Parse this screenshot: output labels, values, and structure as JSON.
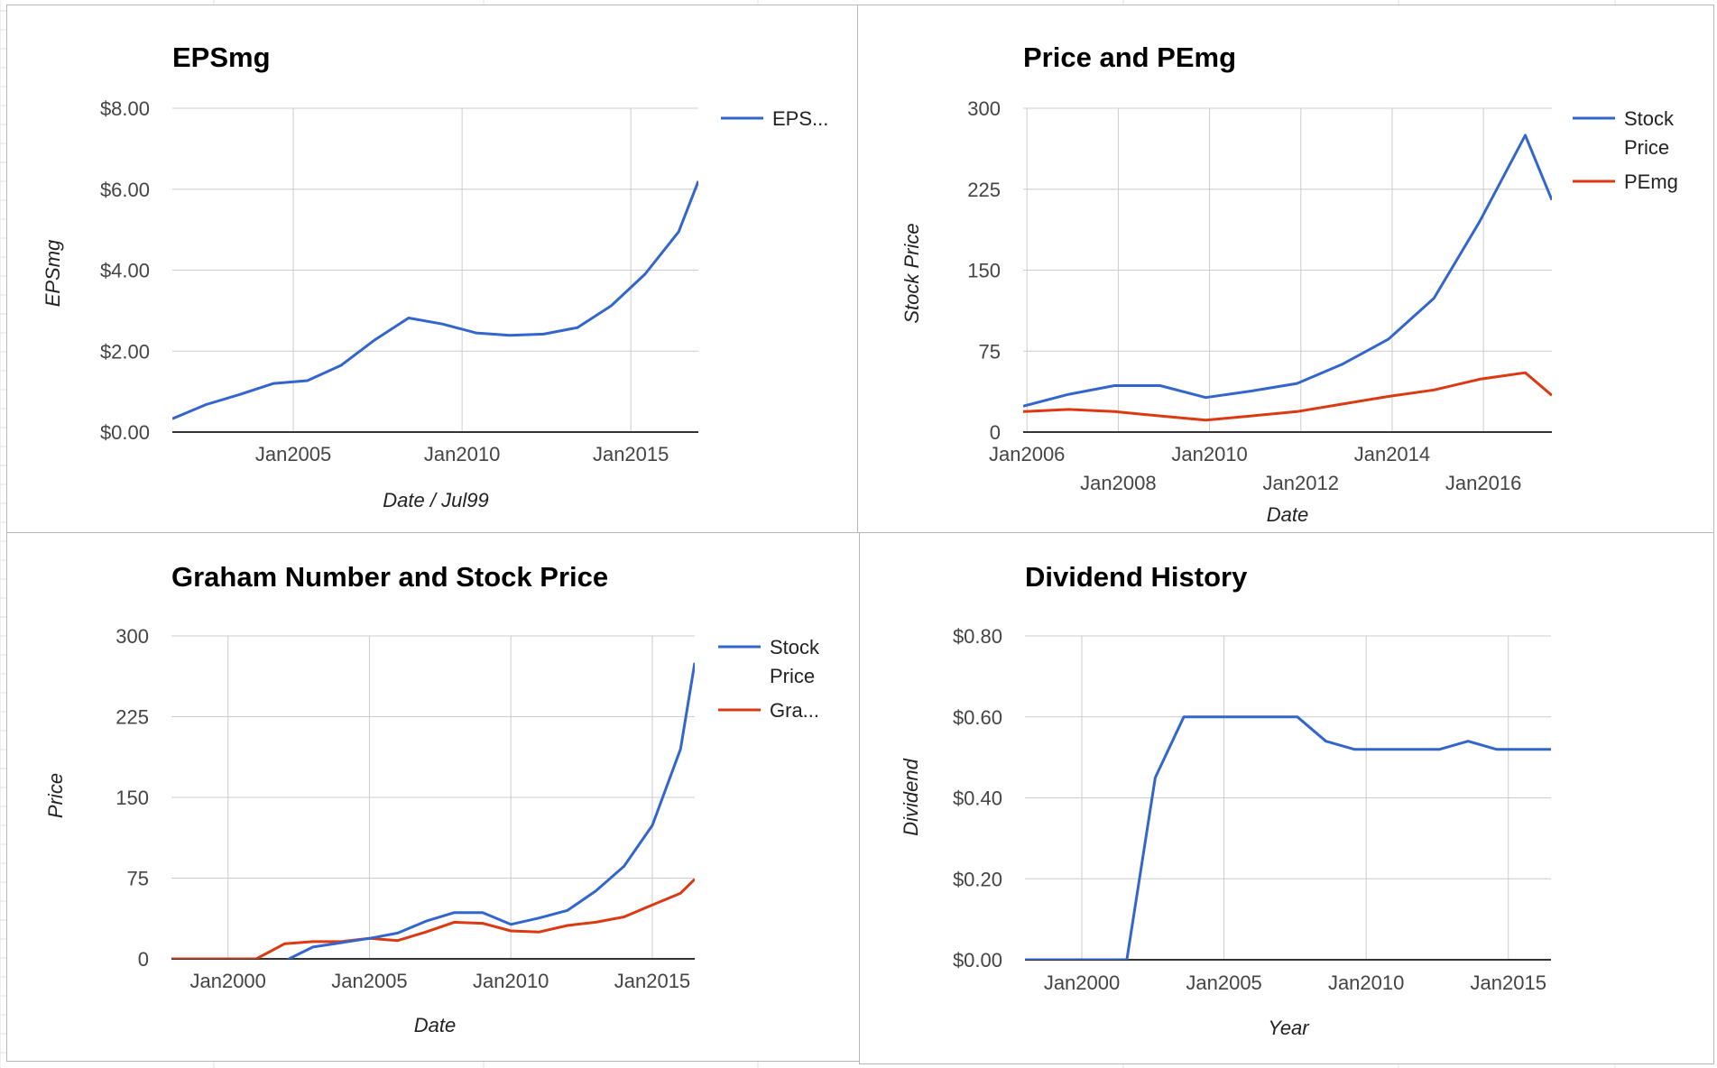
{
  "colors": {
    "series_blue": "#3366cc",
    "series_red": "#dc3912",
    "grid": "#cccccc",
    "baseline": "#333333",
    "panel_border": "#b7b7b7",
    "sheet_grid": "#e2e2e2"
  },
  "chart_data": [
    {
      "type": "line",
      "title": "EPSmg",
      "xlabel": "Date / Jul99",
      "ylabel": "EPSmg",
      "x_ticks": [
        "Jan2005",
        "Jan2010",
        "Jan2015"
      ],
      "y_ticks": [
        "$0.00",
        "$2.00",
        "$4.00",
        "$6.00",
        "$8.00"
      ],
      "ylim": [
        0,
        8
      ],
      "xlim": [
        "2001-06",
        "2017-01"
      ],
      "grid": true,
      "legend_position": "right",
      "series": [
        {
          "name": "EPS...",
          "color": "#3366cc",
          "points": [
            [
              "2001-06",
              0.33
            ],
            [
              "2002-06",
              0.68
            ],
            [
              "2003-06",
              0.93
            ],
            [
              "2004-06",
              1.2
            ],
            [
              "2005-06",
              1.27
            ],
            [
              "2006-06",
              1.65
            ],
            [
              "2007-06",
              2.28
            ],
            [
              "2008-06",
              2.82
            ],
            [
              "2009-06",
              2.67
            ],
            [
              "2010-06",
              2.45
            ],
            [
              "2011-06",
              2.39
            ],
            [
              "2012-06",
              2.42
            ],
            [
              "2013-06",
              2.58
            ],
            [
              "2014-06",
              3.12
            ],
            [
              "2015-06",
              3.9
            ],
            [
              "2016-06",
              4.95
            ],
            [
              "2017-01",
              6.2
            ]
          ]
        }
      ]
    },
    {
      "type": "line",
      "title": "Price and PEmg",
      "xlabel": "Date",
      "ylabel": "Stock Price",
      "x_ticks_row1": [
        "Jan2006",
        "Jan2010",
        "Jan2014"
      ],
      "x_ticks_row2": [
        "Jan2008",
        "Jan2012",
        "Jan2016"
      ],
      "y_ticks": [
        "0",
        "75",
        "150",
        "225",
        "300"
      ],
      "ylim": [
        0,
        300
      ],
      "xlim": [
        "2005-12",
        "2017-07"
      ],
      "grid": true,
      "legend_position": "right",
      "series": [
        {
          "name": "Stock Price",
          "color": "#3366cc",
          "points": [
            [
              "2005-12",
              24
            ],
            [
              "2006-12",
              35
            ],
            [
              "2007-12",
              43
            ],
            [
              "2008-12",
              43
            ],
            [
              "2009-12",
              32
            ],
            [
              "2010-12",
              38
            ],
            [
              "2011-12",
              45
            ],
            [
              "2012-12",
              63
            ],
            [
              "2013-12",
              86
            ],
            [
              "2014-12",
              124
            ],
            [
              "2015-12",
              195
            ],
            [
              "2016-12",
              275
            ],
            [
              "2017-07",
              215
            ]
          ]
        },
        {
          "name": "PEmg",
          "color": "#dc3912",
          "points": [
            [
              "2005-12",
              19
            ],
            [
              "2006-12",
              21
            ],
            [
              "2007-12",
              19
            ],
            [
              "2008-12",
              15
            ],
            [
              "2009-12",
              11
            ],
            [
              "2010-12",
              15
            ],
            [
              "2011-12",
              19
            ],
            [
              "2012-12",
              26
            ],
            [
              "2013-12",
              33
            ],
            [
              "2014-12",
              39
            ],
            [
              "2015-12",
              49
            ],
            [
              "2016-12",
              55
            ],
            [
              "2017-07",
              34
            ]
          ]
        }
      ]
    },
    {
      "type": "line",
      "title": "Graham Number and Stock Price",
      "xlabel": "Date",
      "ylabel": "Price",
      "x_ticks": [
        "Jan2000",
        "Jan2005",
        "Jan2010",
        "Jan2015"
      ],
      "y_ticks": [
        "0",
        "75",
        "150",
        "225",
        "300"
      ],
      "ylim": [
        0,
        300
      ],
      "xlim": [
        "1998-01",
        "2016-07"
      ],
      "grid": true,
      "legend_position": "right",
      "series": [
        {
          "name": "Stock Price",
          "color": "#3366cc",
          "points": [
            [
              "1998-01",
              -10
            ],
            [
              "1999-01",
              -10
            ],
            [
              "2000-01",
              -10
            ],
            [
              "2001-01",
              -10
            ],
            [
              "2002-01",
              -2
            ],
            [
              "2003-01",
              11
            ],
            [
              "2004-01",
              15
            ],
            [
              "2005-01",
              19
            ],
            [
              "2006-01",
              24
            ],
            [
              "2007-01",
              35
            ],
            [
              "2008-01",
              43
            ],
            [
              "2009-01",
              43
            ],
            [
              "2010-01",
              32
            ],
            [
              "2011-01",
              38
            ],
            [
              "2012-01",
              45
            ],
            [
              "2013-01",
              63
            ],
            [
              "2014-01",
              86
            ],
            [
              "2015-01",
              124
            ],
            [
              "2016-01",
              195
            ],
            [
              "2016-07",
              275
            ]
          ]
        },
        {
          "name": "Gra...",
          "color": "#dc3912",
          "points": [
            [
              "1998-01",
              0
            ],
            [
              "1999-01",
              0
            ],
            [
              "2000-01",
              0
            ],
            [
              "2001-01",
              0
            ],
            [
              "2002-01",
              14
            ],
            [
              "2003-01",
              16
            ],
            [
              "2004-01",
              16
            ],
            [
              "2005-01",
              19
            ],
            [
              "2006-01",
              17
            ],
            [
              "2007-01",
              25
            ],
            [
              "2008-01",
              34
            ],
            [
              "2009-01",
              33
            ],
            [
              "2010-01",
              26
            ],
            [
              "2011-01",
              25
            ],
            [
              "2012-01",
              31
            ],
            [
              "2013-01",
              34
            ],
            [
              "2014-01",
              39
            ],
            [
              "2015-01",
              50
            ],
            [
              "2016-01",
              61
            ],
            [
              "2016-07",
              74
            ]
          ]
        }
      ]
    },
    {
      "type": "line",
      "title": "Dividend History",
      "xlabel": "Year",
      "ylabel": "Dividend",
      "x_ticks": [
        "Jan2000",
        "Jan2005",
        "Jan2010",
        "Jan2015"
      ],
      "y_ticks": [
        "$0.00",
        "$0.20",
        "$0.40",
        "$0.60",
        "$0.80"
      ],
      "ylim": [
        0,
        0.8
      ],
      "xlim": [
        "1998-01",
        "2016-07"
      ],
      "grid": true,
      "legend_position": "none",
      "series": [
        {
          "name": "",
          "color": "#3366cc",
          "points": [
            [
              "1998-01",
              0
            ],
            [
              "2001-08",
              0
            ],
            [
              "2002-08",
              0.45
            ],
            [
              "2003-08",
              0.6
            ],
            [
              "2004-08",
              0.6
            ],
            [
              "2005-08",
              0.6
            ],
            [
              "2006-08",
              0.6
            ],
            [
              "2007-08",
              0.6
            ],
            [
              "2008-08",
              0.54
            ],
            [
              "2009-08",
              0.52
            ],
            [
              "2010-08",
              0.52
            ],
            [
              "2011-08",
              0.52
            ],
            [
              "2012-08",
              0.52
            ],
            [
              "2013-08",
              0.54
            ],
            [
              "2014-08",
              0.52
            ],
            [
              "2015-08",
              0.52
            ],
            [
              "2016-07",
              0.52
            ]
          ]
        }
      ]
    }
  ]
}
